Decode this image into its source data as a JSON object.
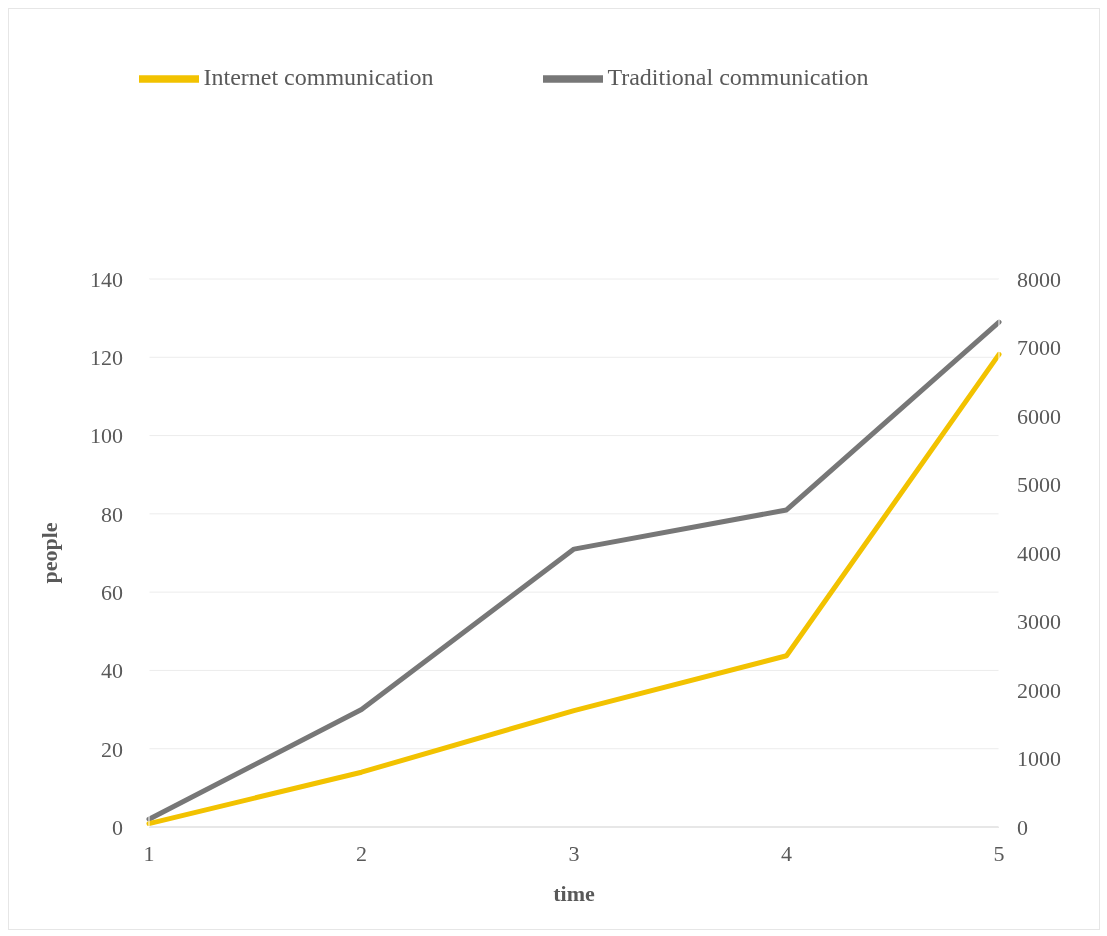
{
  "chart_data": {
    "type": "line",
    "xlabel": "time",
    "ylabel": "people",
    "categories": [
      "1",
      "2",
      "3",
      "4",
      "5"
    ],
    "series": [
      {
        "name": "Traditional communication",
        "color": "#777777",
        "values": [
          2,
          30,
          71,
          81,
          129
        ]
      },
      {
        "name": "Internet communication",
        "color": "#f2c200",
        "values": [
          50,
          800,
          1700,
          2500,
          6900
        ],
        "axis": "y2"
      }
    ],
    "ylim": [
      0,
      140
    ],
    "yticks": [
      0,
      20,
      40,
      60,
      80,
      100,
      120,
      140
    ],
    "y2lim": [
      0,
      8000
    ],
    "y2ticks": [
      0,
      1000,
      2000,
      3000,
      4000,
      5000,
      6000,
      7000,
      8000
    ],
    "grid": "y",
    "legend": "top",
    "marker": "none",
    "line_style": "solid"
  }
}
